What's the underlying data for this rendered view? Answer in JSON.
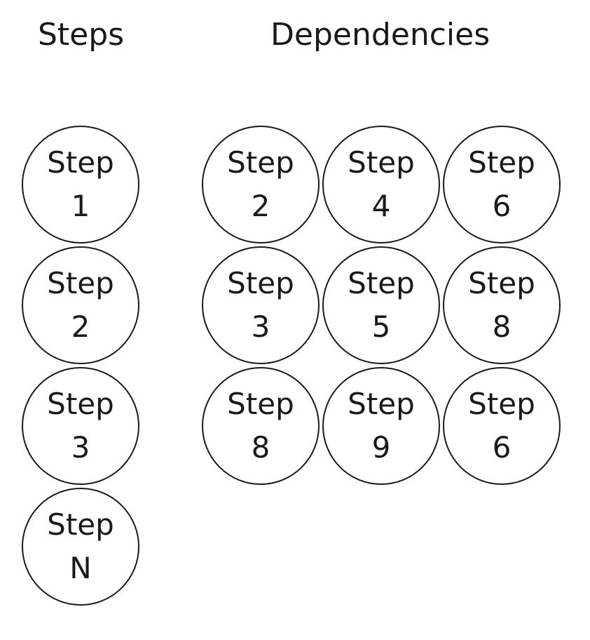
{
  "headings": {
    "steps": "Steps",
    "dependencies": "Dependencies"
  },
  "steps": [
    {
      "word": "Step",
      "num": "1"
    },
    {
      "word": "Step",
      "num": "2"
    },
    {
      "word": "Step",
      "num": "3"
    },
    {
      "word": "Step",
      "num": "N"
    }
  ],
  "dependencies": [
    [
      {
        "word": "Step",
        "num": "2"
      },
      {
        "word": "Step",
        "num": "4"
      },
      {
        "word": "Step",
        "num": "6"
      }
    ],
    [
      {
        "word": "Step",
        "num": "3"
      },
      {
        "word": "Step",
        "num": "5"
      },
      {
        "word": "Step",
        "num": "8"
      }
    ],
    [
      {
        "word": "Step",
        "num": "8"
      },
      {
        "word": "Step",
        "num": "9"
      },
      {
        "word": "Step",
        "num": "6"
      }
    ]
  ]
}
